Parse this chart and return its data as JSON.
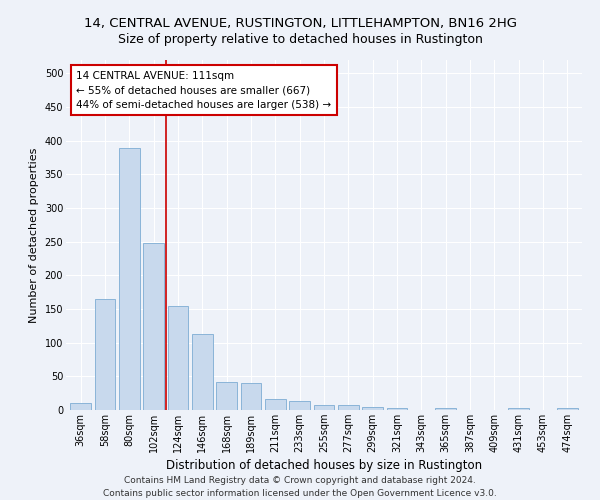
{
  "title": "14, CENTRAL AVENUE, RUSTINGTON, LITTLEHAMPTON, BN16 2HG",
  "subtitle": "Size of property relative to detached houses in Rustington",
  "xlabel": "Distribution of detached houses by size in Rustington",
  "ylabel": "Number of detached properties",
  "categories": [
    "36sqm",
    "58sqm",
    "80sqm",
    "102sqm",
    "124sqm",
    "146sqm",
    "168sqm",
    "189sqm",
    "211sqm",
    "233sqm",
    "255sqm",
    "277sqm",
    "299sqm",
    "321sqm",
    "343sqm",
    "365sqm",
    "387sqm",
    "409sqm",
    "431sqm",
    "453sqm",
    "474sqm"
  ],
  "values": [
    10,
    165,
    390,
    248,
    155,
    113,
    42,
    40,
    17,
    14,
    8,
    7,
    5,
    3,
    0,
    3,
    0,
    0,
    3,
    0,
    3
  ],
  "bar_color": "#c8d9ed",
  "bar_edge_color": "#8ab4d8",
  "highlight_index": 3,
  "vline_color": "#cc0000",
  "annotation_line1": "14 CENTRAL AVENUE: 111sqm",
  "annotation_line2": "← 55% of detached houses are smaller (667)",
  "annotation_line3": "44% of semi-detached houses are larger (538) →",
  "annotation_box_color": "white",
  "annotation_box_edge": "#cc0000",
  "ylim": [
    0,
    520
  ],
  "yticks": [
    0,
    50,
    100,
    150,
    200,
    250,
    300,
    350,
    400,
    450,
    500
  ],
  "background_color": "#eef2f9",
  "footer_line1": "Contains HM Land Registry data © Crown copyright and database right 2024.",
  "footer_line2": "Contains public sector information licensed under the Open Government Licence v3.0.",
  "title_fontsize": 9.5,
  "subtitle_fontsize": 9,
  "xlabel_fontsize": 8.5,
  "ylabel_fontsize": 8,
  "tick_fontsize": 7,
  "annotation_fontsize": 7.5,
  "footer_fontsize": 6.5
}
